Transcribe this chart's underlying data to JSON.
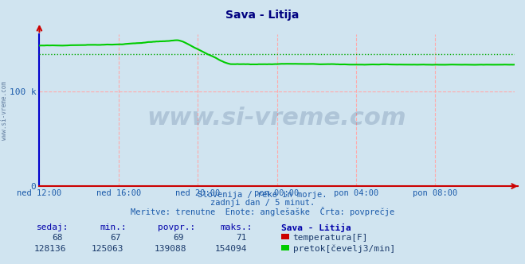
{
  "title": "Sava - Litija",
  "title_color": "#000080",
  "bg_color": "#d0e4f0",
  "plot_bg_color": "#d0e4f0",
  "xlabel": "",
  "ylabel": "",
  "ylim": [
    0,
    160000
  ],
  "ytick_labels": [
    "0",
    "100 k"
  ],
  "ytick_values": [
    0,
    100000
  ],
  "xtick_labels": [
    "ned 12:00",
    "ned 16:00",
    "ned 20:00",
    "pon 00:00",
    "pon 04:00",
    "pon 08:00"
  ],
  "xtick_positions": [
    0,
    48,
    96,
    144,
    192,
    240
  ],
  "n_points": 289,
  "flow_avg": 139088,
  "flow_min": 125063,
  "flow_max": 154094,
  "flow_current": 128136,
  "temp_avg": 69,
  "temp_min": 67,
  "temp_max": 71,
  "temp_current": 68,
  "green_color": "#00cc00",
  "red_color": "#cc0000",
  "blue_color": "#0000cc",
  "dotted_avg_color": "#00aa00",
  "grid_color_v": "#ffaaaa",
  "grid_color_h": "#ffaaaa",
  "axis_color_x": "#cc0000",
  "axis_color_y": "#0000cc",
  "watermark": "www.si-vreme.com",
  "watermark_color": "#1a3a6b",
  "watermark_alpha": 0.18,
  "sub_text1": "Slovenija / reke in morje.",
  "sub_text2": "zadnji dan / 5 minut.",
  "sub_text3": "Meritve: trenutne  Enote: anglešaške  Črta: povprečje",
  "label_color": "#1a5aaa",
  "sidebar_text": "www.si-vreme.com",
  "sidebar_color": "#1a3a6b",
  "table_header_color": "#0000aa",
  "table_val_color": "#1a3a6b"
}
